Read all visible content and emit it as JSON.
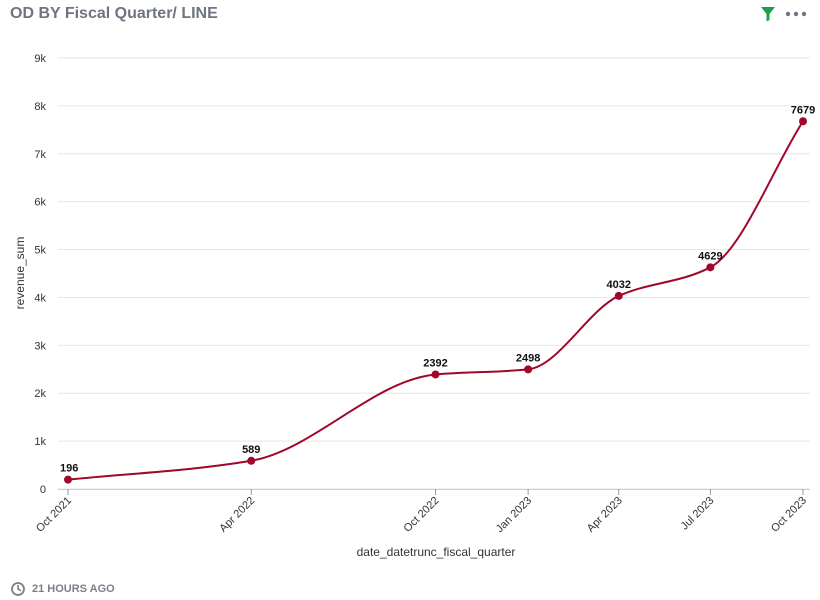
{
  "title": "OD BY Fiscal Quarter/ LINE",
  "footer": {
    "timestamp": "21 HOURS AGO"
  },
  "icons": {
    "filter": "filter-icon",
    "more": "more-icon",
    "clock": "clock-icon"
  },
  "colors": {
    "line": "#a0072b",
    "filter": "#1aa34a",
    "title": "#6e7480"
  },
  "chart_data": {
    "type": "line",
    "x": [
      "Oct 2021",
      "Apr 2022",
      "Oct 2022",
      "Jan 2023",
      "Apr 2023",
      "Jul 2023",
      "Oct 2023"
    ],
    "x_dates": [
      "2021-10-01",
      "2022-04-01",
      "2022-10-01",
      "2023-01-01",
      "2023-04-01",
      "2023-07-01",
      "2023-10-01"
    ],
    "values": [
      196,
      589,
      2392,
      2498,
      4032,
      4629,
      7679
    ],
    "xlabel": "date_datetrunc_fiscal_quarter",
    "ylabel": "revenue_sum",
    "ylim": [
      0,
      9000
    ],
    "yticks": [
      0,
      1000,
      2000,
      3000,
      4000,
      5000,
      6000,
      7000,
      8000,
      9000
    ],
    "ytick_labels": [
      "0",
      "1k",
      "2k",
      "3k",
      "4k",
      "5k",
      "6k",
      "7k",
      "8k",
      "9k"
    ],
    "grid": true,
    "legend": "none"
  }
}
